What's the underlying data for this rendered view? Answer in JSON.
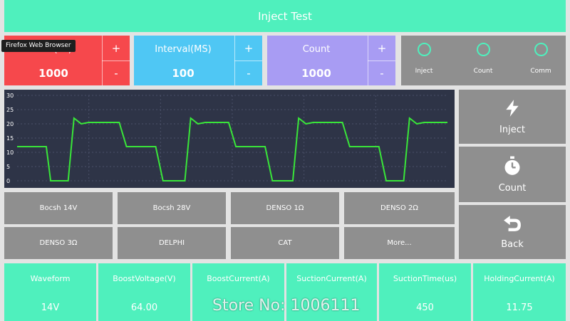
{
  "header": {
    "title": "Inject Test"
  },
  "tooltip": "Firefox Web Browser",
  "params": [
    {
      "label": "Plus(us)",
      "value": "1000",
      "plus": "+",
      "minus": "-"
    },
    {
      "label": "Interval(MS)",
      "value": "100",
      "plus": "+",
      "minus": "-"
    },
    {
      "label": "Count",
      "value": "1000",
      "plus": "+",
      "minus": "-"
    }
  ],
  "indicators": [
    {
      "label": "Inject"
    },
    {
      "label": "Count"
    },
    {
      "label": "Comm"
    }
  ],
  "chart_data": {
    "type": "line",
    "ylim": [
      0,
      30
    ],
    "yticks": [
      "0",
      "5",
      "10",
      "15",
      "20",
      "25",
      "30"
    ],
    "grid": true,
    "line_color": "#39e639",
    "series": [
      {
        "x": [
          0,
          40,
          46,
          70,
          78,
          88,
          98,
          140,
          150,
          190,
          200,
          230,
          238,
          248,
          258,
          290,
          300,
          340,
          350,
          378,
          386,
          396,
          406,
          446,
          456,
          496,
          506,
          530,
          538,
          548,
          558,
          590
        ],
        "values": [
          12,
          12,
          0,
          0,
          22,
          20,
          20.5,
          20.5,
          12,
          12,
          0,
          0,
          22,
          20,
          20.5,
          20.5,
          12,
          12,
          0,
          0,
          22,
          20,
          20.5,
          20.5,
          12,
          12,
          0,
          0,
          22,
          20,
          20.5,
          20.5
        ]
      }
    ]
  },
  "actions": [
    {
      "label": "Inject",
      "icon": "lightning-icon"
    },
    {
      "label": "Count",
      "icon": "stopwatch-icon"
    },
    {
      "label": "Back",
      "icon": "back-arrow-icon"
    }
  ],
  "presets": [
    "Bocsh 14V",
    "Bocsh 28V",
    "DENSO 1Ω",
    "DENSO 2Ω",
    "DENSO 3Ω",
    "DELPHI",
    "CAT",
    "More..."
  ],
  "footer": [
    {
      "label": "Waveform",
      "value": "14V"
    },
    {
      "label": "BoostVoltage(V)",
      "value": "64.00"
    },
    {
      "label": "BoostCurrent(A)",
      "value": ""
    },
    {
      "label": "SuctionCurrent(A)",
      "value": ""
    },
    {
      "label": "SuctionTime(us)",
      "value": "450"
    },
    {
      "label": "HoldingCurrent(A)",
      "value": "11.75"
    }
  ],
  "watermark": "Store No: 1006111",
  "colors": {
    "accent": "#4ff0bd",
    "red": "#f6484c",
    "blue": "#4fc7f4",
    "purple": "#a89cf3",
    "gray": "#8f8f8f"
  }
}
